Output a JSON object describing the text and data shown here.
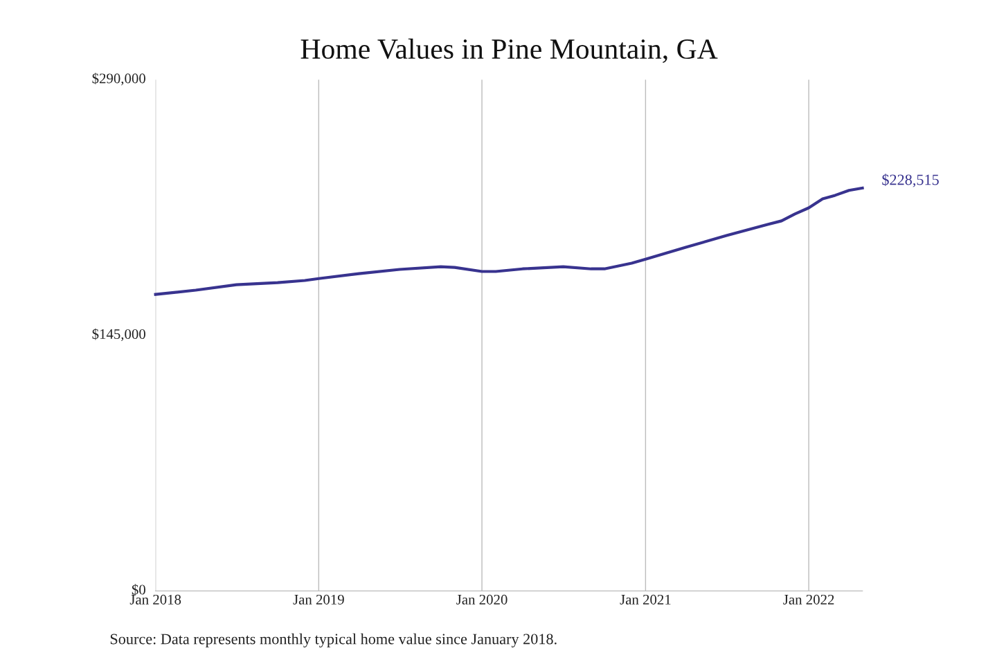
{
  "chart_data": {
    "type": "line",
    "title": "Home Values in Pine Mountain, GA",
    "x": [
      "2018-01",
      "2018-04",
      "2018-07",
      "2018-10",
      "2018-12",
      "2019-01",
      "2019-04",
      "2019-07",
      "2019-10",
      "2019-11",
      "2020-01",
      "2020-02",
      "2020-04",
      "2020-07",
      "2020-09",
      "2020-10",
      "2020-12",
      "2021-01",
      "2021-04",
      "2021-07",
      "2021-10",
      "2021-11",
      "2021-12",
      "2022-01",
      "2022-02",
      "2022-03",
      "2022-04",
      "2022-05"
    ],
    "series": [
      {
        "color": "#38338f",
        "values": [
          168200,
          170600,
          173700,
          174900,
          176100,
          177200,
          180000,
          182400,
          183900,
          183500,
          181200,
          181200,
          182700,
          183900,
          182700,
          182700,
          185900,
          188200,
          194900,
          201600,
          207900,
          209900,
          213800,
          217300,
          222400,
          224400,
          227200,
          228515
        ]
      }
    ],
    "ylim": [
      0,
      290000
    ],
    "yticks": [
      {
        "value": 0,
        "label": "$0"
      },
      {
        "value": 145000,
        "label": "$145,000"
      },
      {
        "value": 290000,
        "label": "$290,000"
      }
    ],
    "xticks": [
      {
        "value": "2018-01",
        "label": "Jan 2018"
      },
      {
        "value": "2019-01",
        "label": "Jan 2019"
      },
      {
        "value": "2020-01",
        "label": "Jan 2020"
      },
      {
        "value": "2021-01",
        "label": "Jan 2021"
      },
      {
        "value": "2022-01",
        "label": "Jan 2022"
      }
    ],
    "xlim": [
      "2018-01",
      "2022-05"
    ],
    "grid": "x",
    "marker": "none",
    "line_style": "solid",
    "legend": false,
    "annotations": [
      {
        "text": "$228,515",
        "x": "2022-05",
        "y": 228515
      },
      "Source: Data represents monthly typical home value since January 2018."
    ]
  }
}
